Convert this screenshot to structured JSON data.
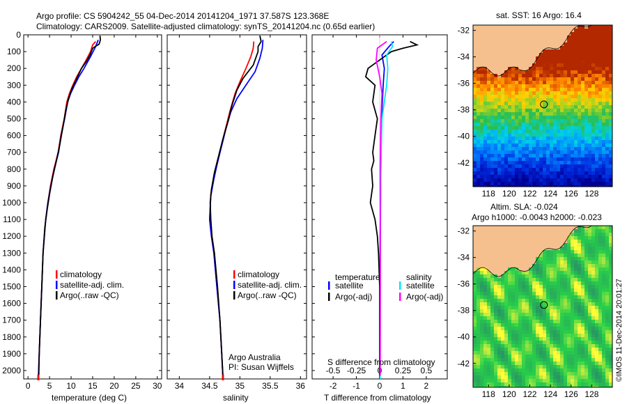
{
  "header": {
    "line1": "Argo profile: CS 5904242_55 04-Dec-2014 20141204_1971 37.587S 123.368E",
    "line2": "Climatology: CARS2009. Satellite-adjusted climatology: synTS_20141204.nc (0.65d earlier)"
  },
  "colors": {
    "climatology": "#ff0000",
    "satellite": "#0000ff",
    "argo": "#000000",
    "sal_satellite": "#00e5ff",
    "sal_argo": "#ff00ff",
    "land": "#f5c08e"
  },
  "chart_data": [
    {
      "type": "line",
      "name": "temperature",
      "xlabel": "temperature (deg C)",
      "ylabel": "",
      "xlim": [
        -1,
        31
      ],
      "ylim": [
        2050,
        0
      ],
      "xticks": [
        "0",
        "5",
        "10",
        "15",
        "20",
        "25",
        "30"
      ],
      "yticks": [
        "0",
        "100",
        "200",
        "300",
        "400",
        "500",
        "600",
        "700",
        "800",
        "900",
        "1000",
        "1100",
        "1200",
        "1300",
        "1400",
        "1500",
        "1600",
        "1700",
        "1800",
        "1900",
        "2000"
      ],
      "legend": [
        "climatology",
        "satellite-adj. clim.",
        "Argo(..raw -QC)"
      ],
      "series": [
        {
          "name": "climatology",
          "color": "#ff0000",
          "points": [
            [
              15.7,
              40
            ],
            [
              15.0,
              60
            ],
            [
              14.5,
              100
            ],
            [
              13.5,
              150
            ],
            [
              12.4,
              200
            ],
            [
              11.3,
              250
            ],
            [
              10.4,
              300
            ],
            [
              9.6,
              350
            ],
            [
              9.0,
              400
            ],
            [
              8.4,
              500
            ],
            [
              7.6,
              600
            ],
            [
              7.0,
              700
            ],
            [
              6.0,
              800
            ],
            [
              5.2,
              900
            ],
            [
              4.6,
              1000
            ],
            [
              4.1,
              1100
            ],
            [
              3.8,
              1200
            ],
            [
              3.5,
              1300
            ],
            [
              3.2,
              1500
            ],
            [
              2.9,
              1700
            ],
            [
              2.6,
              1900
            ],
            [
              2.4,
              2050
            ]
          ]
        },
        {
          "name": "satellite-adj. clim.",
          "color": "#0000ff",
          "points": [
            [
              16.3,
              30
            ],
            [
              16.0,
              50
            ],
            [
              15.5,
              80
            ],
            [
              14.5,
              130
            ],
            [
              13.0,
              200
            ],
            [
              11.8,
              250
            ],
            [
              10.8,
              300
            ],
            [
              9.9,
              350
            ],
            [
              9.2,
              400
            ],
            [
              8.5,
              500
            ],
            [
              7.7,
              600
            ],
            [
              7.1,
              700
            ],
            [
              6.1,
              800
            ],
            [
              5.3,
              900
            ],
            [
              4.6,
              1000
            ],
            [
              4.1,
              1100
            ],
            [
              3.8,
              1200
            ],
            [
              3.5,
              1300
            ],
            [
              3.2,
              1500
            ],
            [
              2.9,
              1700
            ],
            [
              2.6,
              1900
            ],
            [
              2.4,
              2050
            ]
          ]
        },
        {
          "name": "Argo(..raw -QC)",
          "color": "#000000",
          "points": [
            [
              16.7,
              5
            ],
            [
              16.8,
              30
            ],
            [
              16.5,
              55
            ],
            [
              15.0,
              80
            ],
            [
              14.4,
              120
            ],
            [
              13.5,
              160
            ],
            [
              12.4,
              200
            ],
            [
              11.3,
              260
            ],
            [
              10.2,
              320
            ],
            [
              9.4,
              380
            ],
            [
              8.7,
              460
            ],
            [
              8.1,
              550
            ],
            [
              7.4,
              650
            ],
            [
              6.6,
              750
            ],
            [
              5.7,
              850
            ],
            [
              5.0,
              950
            ],
            [
              4.4,
              1050
            ],
            [
              3.9,
              1150
            ],
            [
              3.5,
              1300
            ],
            [
              3.2,
              1500
            ],
            [
              2.9,
              1700
            ],
            [
              2.6,
              1900
            ],
            [
              2.5,
              2030
            ]
          ]
        }
      ]
    },
    {
      "type": "line",
      "name": "salinity",
      "xlabel": "salinity",
      "xlim": [
        33.8,
        36.1
      ],
      "ylim": [
        2050,
        0
      ],
      "xticks": [
        "34",
        "34.5",
        "35",
        "35.5",
        "36"
      ],
      "legend": [
        "climatology",
        "satellite-adj. clim.",
        "Argo(..raw -QC)"
      ],
      "annotation": [
        "Argo Australia",
        "PI: Susan Wijffels"
      ],
      "series": [
        {
          "name": "climatology",
          "color": "#ff0000",
          "points": [
            [
              35.23,
              40
            ],
            [
              35.22,
              80
            ],
            [
              35.18,
              130
            ],
            [
              35.1,
              200
            ],
            [
              35.0,
              280
            ],
            [
              34.92,
              350
            ],
            [
              34.84,
              450
            ],
            [
              34.77,
              550
            ],
            [
              34.7,
              650
            ],
            [
              34.64,
              750
            ],
            [
              34.57,
              850
            ],
            [
              34.52,
              950
            ],
            [
              34.5,
              1100
            ],
            [
              34.53,
              1200
            ],
            [
              34.57,
              1300
            ],
            [
              34.62,
              1500
            ],
            [
              34.67,
              1700
            ],
            [
              34.7,
              1900
            ],
            [
              34.72,
              2050
            ]
          ]
        },
        {
          "name": "satellite-adj. clim.",
          "color": "#0000ff",
          "points": [
            [
              35.38,
              30
            ],
            [
              35.37,
              80
            ],
            [
              35.33,
              140
            ],
            [
              35.25,
              220
            ],
            [
              35.1,
              300
            ],
            [
              34.95,
              380
            ],
            [
              34.85,
              460
            ],
            [
              34.77,
              560
            ],
            [
              34.7,
              660
            ],
            [
              34.63,
              760
            ],
            [
              34.57,
              860
            ],
            [
              34.52,
              960
            ],
            [
              34.5,
              1100
            ],
            [
              34.53,
              1200
            ],
            [
              34.57,
              1300
            ],
            [
              34.62,
              1500
            ],
            [
              34.67,
              1700
            ],
            [
              34.7,
              1900
            ],
            [
              34.72,
              2050
            ]
          ]
        },
        {
          "name": "Argo(..raw -QC)",
          "color": "#000000",
          "points": [
            [
              35.33,
              5
            ],
            [
              35.35,
              40
            ],
            [
              35.3,
              70
            ],
            [
              35.3,
              100
            ],
            [
              35.22,
              180
            ],
            [
              35.05,
              260
            ],
            [
              34.95,
              330
            ],
            [
              34.87,
              420
            ],
            [
              34.8,
              520
            ],
            [
              34.72,
              620
            ],
            [
              34.65,
              720
            ],
            [
              34.58,
              820
            ],
            [
              34.53,
              920
            ],
            [
              34.51,
              1000
            ],
            [
              34.52,
              1100
            ],
            [
              34.54,
              1200
            ],
            [
              34.58,
              1300
            ],
            [
              34.63,
              1500
            ],
            [
              34.67,
              1700
            ],
            [
              34.7,
              1900
            ],
            [
              34.72,
              2030
            ]
          ]
        }
      ]
    },
    {
      "type": "line",
      "name": "difference",
      "xlabel": "T difference from climatology",
      "xlabel2": "S difference from climatology",
      "xlim": [
        -2.9,
        2.9
      ],
      "ylim": [
        2050,
        0
      ],
      "xticks": [
        "-2",
        "-1",
        "0",
        "1",
        "2"
      ],
      "xticks_s": [
        "-0.5",
        "-0.25",
        "0",
        "0.25",
        "0.5"
      ],
      "legend_titles": [
        "temperature",
        "salinity"
      ],
      "legend": [
        "satellite",
        "Argo(-adj)",
        "satellite",
        "Argo(-adj)"
      ],
      "series": [
        {
          "name": "temperature satellite",
          "color": "#0000ff",
          "points": [
            [
              0.6,
              40
            ],
            [
              0.4,
              70
            ],
            [
              0.1,
              120
            ],
            [
              0.2,
              200
            ],
            [
              0.15,
              300
            ],
            [
              0.08,
              500
            ],
            [
              0.05,
              800
            ],
            [
              0.02,
              1200
            ],
            [
              0.0,
              2050
            ]
          ]
        },
        {
          "name": "temperature Argo(-adj)",
          "color": "#000000",
          "points": [
            [
              1.3,
              40
            ],
            [
              1.6,
              60
            ],
            [
              1.0,
              80
            ],
            [
              0.5,
              100
            ],
            [
              0.2,
              130
            ],
            [
              -0.5,
              200
            ],
            [
              -0.6,
              250
            ],
            [
              -0.2,
              300
            ],
            [
              -0.3,
              400
            ],
            [
              -0.1,
              500
            ],
            [
              -0.2,
              600
            ],
            [
              -0.3,
              700
            ],
            [
              -0.25,
              750
            ],
            [
              -0.35,
              800
            ],
            [
              -0.3,
              900
            ],
            [
              -0.4,
              1000
            ],
            [
              -0.2,
              1100
            ],
            [
              -0.1,
              1200
            ],
            [
              -0.05,
              1300
            ],
            [
              0.0,
              1500
            ],
            [
              0.0,
              2030
            ]
          ]
        },
        {
          "name": "salinity satellite",
          "color": "#00e5ff",
          "points": [
            [
              0.5,
              40
            ],
            [
              0.55,
              70
            ],
            [
              0.3,
              120
            ],
            [
              0.35,
              200
            ],
            [
              0.3,
              300
            ],
            [
              0.1,
              500
            ],
            [
              0.05,
              800
            ],
            [
              0.03,
              1200
            ],
            [
              0.02,
              2050
            ]
          ]
        },
        {
          "name": "salinity Argo(-adj)",
          "color": "#ff00ff",
          "points": [
            [
              0.3,
              40
            ],
            [
              -0.1,
              80
            ],
            [
              -0.15,
              150
            ],
            [
              0.0,
              250
            ],
            [
              0.1,
              350
            ],
            [
              0.05,
              500
            ],
            [
              0.02,
              800
            ],
            [
              0.03,
              1200
            ],
            [
              0.02,
              2030
            ]
          ]
        }
      ]
    },
    {
      "type": "heatmap",
      "name": "sat-sst-map",
      "title": "sat. SST: 16 Argo: 16.4",
      "xticks": [
        "118",
        "120",
        "122",
        "124",
        "126",
        "128"
      ],
      "yticks": [
        "-32",
        "-34",
        "-36",
        "-38",
        "-40",
        "-42"
      ],
      "marker": {
        "lon": 123.368,
        "lat": -37.587
      }
    },
    {
      "type": "heatmap",
      "name": "sla-map",
      "title_lines": [
        "Altim. SLA: -0.024",
        "Argo h1000: -0.0043 h2000: -0.023"
      ],
      "xticks": [
        "118",
        "120",
        "122",
        "124",
        "126",
        "128"
      ],
      "yticks": [
        "-32",
        "-34",
        "-36",
        "-38",
        "-40",
        "-42"
      ],
      "marker": {
        "lon": 123.368,
        "lat": -37.587
      }
    }
  ],
  "credit": "©IMOS 11-Dec-2014 20:01:27"
}
